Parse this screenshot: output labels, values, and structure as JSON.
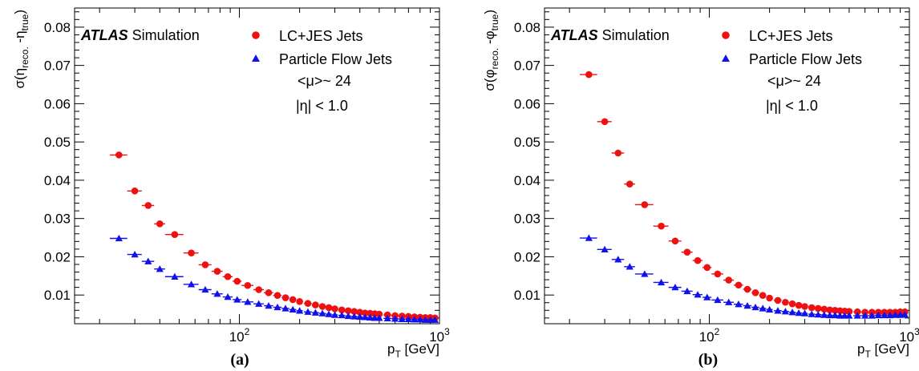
{
  "chart_data": [
    {
      "type": "scatter",
      "panel_label": "(a)",
      "ylabel_parts": [
        "σ(η",
        "reco.",
        " -η",
        "true",
        ")"
      ],
      "xlabel_parts": [
        "p",
        "T",
        " [GeV]"
      ],
      "x_scale": "log",
      "xlim": [
        15,
        1000
      ],
      "ylim": [
        0.0025,
        0.085
      ],
      "x_ticks": [
        {
          "value": 100,
          "base": "10",
          "exp": "2"
        },
        {
          "value": 1000,
          "base": "10",
          "exp": "3"
        }
      ],
      "y_ticks": [
        0.01,
        0.02,
        0.03,
        0.04,
        0.05,
        0.06,
        0.07,
        0.08
      ],
      "y_tick_labels": [
        "0.01",
        "0.02",
        "0.03",
        "0.04",
        "0.05",
        "0.06",
        "0.07",
        "0.08"
      ],
      "annotations": {
        "experiment": "ATLAS",
        "label": "Simulation",
        "mu": "<μ>~ 24",
        "eta": "|η| < 1.0"
      },
      "legend_position": "top-right",
      "grid": false,
      "series": [
        {
          "name": "LC+JES Jets",
          "marker": "circle",
          "color": "#ee1111",
          "x": [
            25,
            30,
            35,
            40,
            47.5,
            57.5,
            67.5,
            77.5,
            87.5,
            97.5,
            110,
            125,
            140,
            155,
            170,
            185,
            200,
            220,
            240,
            260,
            280,
            300,
            325,
            350,
            375,
            400,
            425,
            450,
            475,
            500,
            550,
            600,
            650,
            700,
            750,
            800,
            850,
            900,
            950
          ],
          "xerr": [
            2.5,
            2.5,
            2.5,
            2.5,
            5,
            5,
            5,
            5,
            5,
            5,
            7.5,
            7.5,
            7.5,
            7.5,
            7.5,
            7.5,
            7.5,
            10,
            10,
            10,
            10,
            10,
            12.5,
            12.5,
            12.5,
            12.5,
            12.5,
            12.5,
            12.5,
            12.5,
            25,
            25,
            25,
            25,
            25,
            25,
            25,
            25,
            25
          ],
          "y": [
            0.0466,
            0.0372,
            0.0334,
            0.0286,
            0.0258,
            0.021,
            0.0179,
            0.0162,
            0.0148,
            0.0136,
            0.0125,
            0.0114,
            0.0106,
            0.0099,
            0.0093,
            0.0088,
            0.0083,
            0.0078,
            0.0074,
            0.007,
            0.0067,
            0.0064,
            0.0061,
            0.0059,
            0.0057,
            0.0055,
            0.0053,
            0.0052,
            0.0051,
            0.005,
            0.0048,
            0.0046,
            0.0045,
            0.0044,
            0.0043,
            0.0042,
            0.0041,
            0.0041,
            0.004
          ]
        },
        {
          "name": "Particle Flow Jets",
          "marker": "triangle",
          "color": "#1111ee",
          "x": [
            25,
            30,
            35,
            40,
            47.5,
            57.5,
            67.5,
            77.5,
            87.5,
            97.5,
            110,
            125,
            140,
            155,
            170,
            185,
            200,
            220,
            240,
            260,
            280,
            300,
            325,
            350,
            375,
            400,
            425,
            450,
            475,
            500,
            550,
            600,
            650,
            700,
            750,
            800,
            850,
            900,
            950
          ],
          "xerr": [
            2.5,
            2.5,
            2.5,
            2.5,
            5,
            5,
            5,
            5,
            5,
            5,
            7.5,
            7.5,
            7.5,
            7.5,
            7.5,
            7.5,
            7.5,
            10,
            10,
            10,
            10,
            10,
            12.5,
            12.5,
            12.5,
            12.5,
            12.5,
            12.5,
            12.5,
            12.5,
            25,
            25,
            25,
            25,
            25,
            25,
            25,
            25,
            25
          ],
          "y": [
            0.0248,
            0.0206,
            0.0188,
            0.0168,
            0.0148,
            0.0128,
            0.0114,
            0.0103,
            0.0095,
            0.0088,
            0.0082,
            0.0077,
            0.0072,
            0.0068,
            0.0065,
            0.0062,
            0.0059,
            0.0056,
            0.0054,
            0.0052,
            0.005,
            0.0048,
            0.0047,
            0.0045,
            0.0044,
            0.0043,
            0.0042,
            0.0041,
            0.004,
            0.004,
            0.0039,
            0.0038,
            0.0037,
            0.0037,
            0.0036,
            0.0036,
            0.0035,
            0.0035,
            0.0035
          ]
        }
      ]
    },
    {
      "type": "scatter",
      "panel_label": "(b)",
      "ylabel_parts": [
        "σ(φ",
        "reco.",
        " -φ",
        "true",
        ")"
      ],
      "xlabel_parts": [
        "p",
        "T",
        " [GeV]"
      ],
      "x_scale": "log",
      "xlim": [
        15,
        1000
      ],
      "ylim": [
        0.0025,
        0.085
      ],
      "x_ticks": [
        {
          "value": 100,
          "base": "10",
          "exp": "2"
        },
        {
          "value": 1000,
          "base": "10",
          "exp": "3"
        }
      ],
      "y_ticks": [
        0.01,
        0.02,
        0.03,
        0.04,
        0.05,
        0.06,
        0.07,
        0.08
      ],
      "y_tick_labels": [
        "0.01",
        "0.02",
        "0.03",
        "0.04",
        "0.05",
        "0.06",
        "0.07",
        "0.08"
      ],
      "annotations": {
        "experiment": "ATLAS",
        "label": "Simulation",
        "mu": "<μ>~ 24",
        "eta": "|η| < 1.0"
      },
      "legend_position": "top-right",
      "grid": false,
      "series": [
        {
          "name": "LC+JES Jets",
          "marker": "circle",
          "color": "#ee1111",
          "x": [
            25,
            30,
            35,
            40,
            47.5,
            57.5,
            67.5,
            77.5,
            87.5,
            97.5,
            110,
            125,
            140,
            155,
            170,
            185,
            200,
            220,
            240,
            260,
            280,
            300,
            325,
            350,
            375,
            400,
            425,
            450,
            475,
            500,
            550,
            600,
            650,
            700,
            750,
            800,
            850,
            900,
            950
          ],
          "xerr": [
            2.5,
            2.5,
            2.5,
            2.5,
            5,
            5,
            5,
            5,
            5,
            5,
            7.5,
            7.5,
            7.5,
            7.5,
            7.5,
            7.5,
            7.5,
            10,
            10,
            10,
            10,
            10,
            12.5,
            12.5,
            12.5,
            12.5,
            12.5,
            12.5,
            12.5,
            12.5,
            25,
            25,
            25,
            25,
            25,
            25,
            25,
            25,
            25
          ],
          "y": [
            0.0676,
            0.0553,
            0.0471,
            0.039,
            0.0336,
            0.028,
            0.0241,
            0.0212,
            0.019,
            0.0172,
            0.0155,
            0.0139,
            0.0126,
            0.0115,
            0.0106,
            0.0099,
            0.0092,
            0.0086,
            0.0081,
            0.0077,
            0.0073,
            0.007,
            0.0067,
            0.0065,
            0.0063,
            0.0061,
            0.006,
            0.0059,
            0.0058,
            0.0057,
            0.0056,
            0.0055,
            0.0055,
            0.0055,
            0.0055,
            0.0055,
            0.0055,
            0.0056,
            0.0056
          ]
        },
        {
          "name": "Particle Flow Jets",
          "marker": "triangle",
          "color": "#1111ee",
          "x": [
            25,
            30,
            35,
            40,
            47.5,
            57.5,
            67.5,
            77.5,
            87.5,
            97.5,
            110,
            125,
            140,
            155,
            170,
            185,
            200,
            220,
            240,
            260,
            280,
            300,
            325,
            350,
            375,
            400,
            425,
            450,
            475,
            500,
            550,
            600,
            650,
            700,
            750,
            800,
            850,
            900,
            950
          ],
          "xerr": [
            2.5,
            2.5,
            2.5,
            2.5,
            5,
            5,
            5,
            5,
            5,
            5,
            7.5,
            7.5,
            7.5,
            7.5,
            7.5,
            7.5,
            7.5,
            10,
            10,
            10,
            10,
            10,
            12.5,
            12.5,
            12.5,
            12.5,
            12.5,
            12.5,
            12.5,
            12.5,
            25,
            25,
            25,
            25,
            25,
            25,
            25,
            25,
            25
          ],
          "y": [
            0.0249,
            0.0219,
            0.0193,
            0.0174,
            0.0155,
            0.0133,
            0.012,
            0.011,
            0.0101,
            0.0094,
            0.0087,
            0.0081,
            0.0076,
            0.0072,
            0.0068,
            0.0065,
            0.0062,
            0.0059,
            0.0057,
            0.0055,
            0.0053,
            0.0052,
            0.005,
            0.0049,
            0.0048,
            0.0047,
            0.0047,
            0.0046,
            0.0046,
            0.0046,
            0.0046,
            0.0046,
            0.0046,
            0.0047,
            0.0047,
            0.0047,
            0.0048,
            0.0048,
            0.0049
          ]
        }
      ]
    }
  ]
}
